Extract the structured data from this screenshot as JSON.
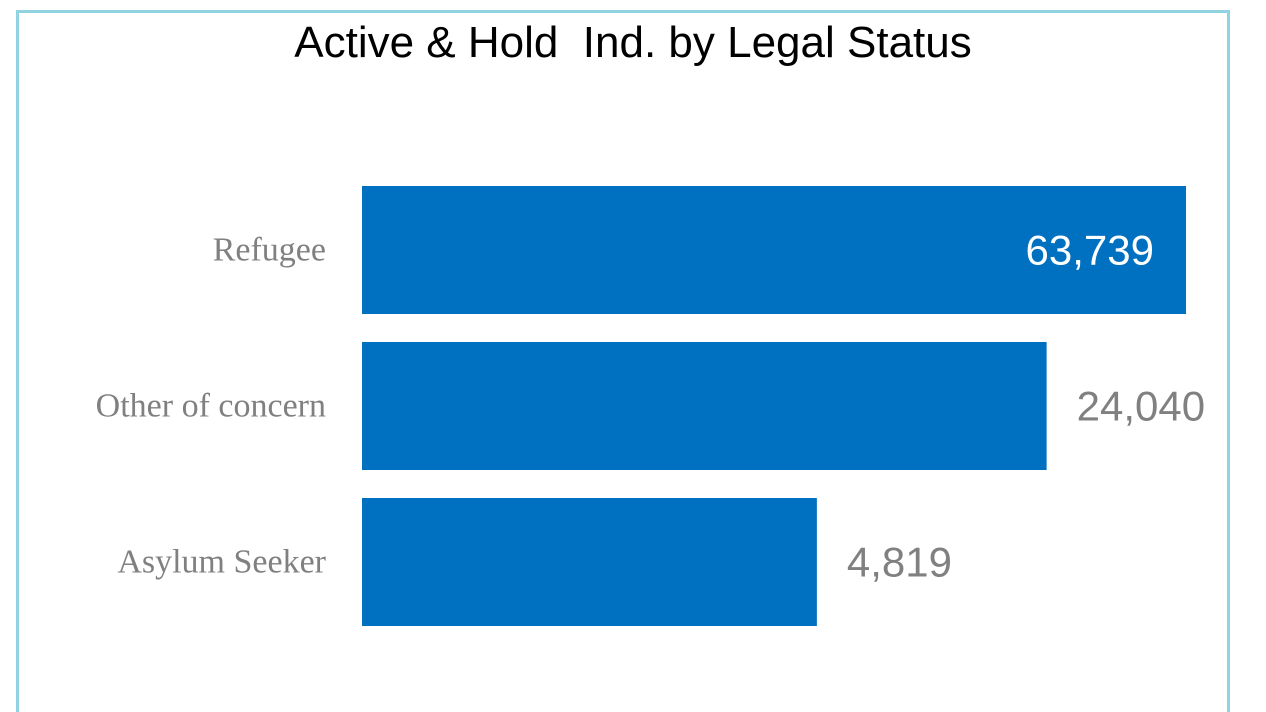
{
  "chart_data": {
    "type": "bar",
    "orientation": "horizontal",
    "title": "Active & Hold  Ind. by Legal Status",
    "categories": [
      "Refugee",
      "Other of concern",
      "Asylum Seeker"
    ],
    "values": [
      63739,
      24040,
      4819
    ],
    "value_labels": [
      "63,739",
      "24,040",
      "4,819"
    ],
    "bar_color": "#0070c0",
    "value_label_color_inside": "#ffffff",
    "value_label_color_outside": "#808080",
    "category_label_color": "#808080",
    "border_color": "#92d3e3",
    "axis_scale": "log",
    "xlim": [
      200,
      90000
    ],
    "grid": false,
    "legend": "none"
  }
}
